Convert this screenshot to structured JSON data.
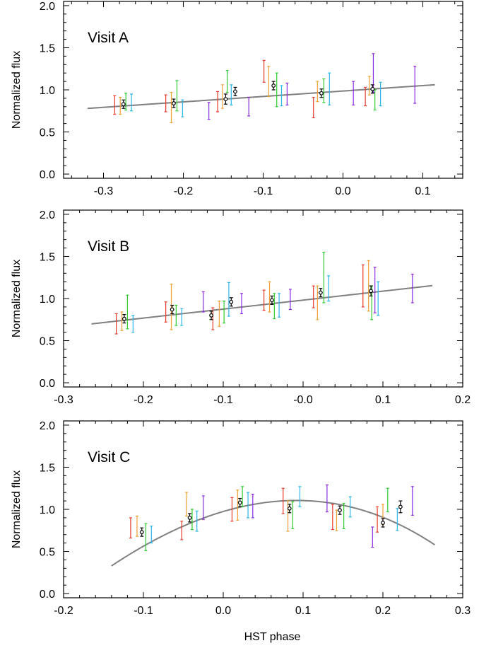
{
  "chart_data": [
    {
      "type": "scatter",
      "panel_label": "Visit A",
      "xlabel": "",
      "ylabel": "Normalized flux",
      "xlim": [
        -0.35,
        0.15
      ],
      "ylim": [
        -0.05,
        2.05
      ],
      "xticks": [
        -0.3,
        -0.2,
        -0.1,
        0.0,
        0.1
      ],
      "xtick_labels": [
        "-0.3",
        "-0.2",
        "-0.1",
        "0.0",
        "0.1"
      ],
      "yticks": [
        0.0,
        0.5,
        1.0,
        1.5,
        2.0
      ],
      "ytick_labels": [
        "0.0",
        "0.5",
        "1.0",
        "1.5",
        "2.0"
      ],
      "model_curve": {
        "color": "#808080",
        "coeffs": [
          0.986,
          0.645,
          0,
          0
        ],
        "x_range": [
          -0.32,
          0.115
        ]
      },
      "binned_points": [
        {
          "x": -0.275,
          "y": 0.83,
          "err": 0.05
        },
        {
          "x": -0.212,
          "y": 0.84,
          "err": 0.05
        },
        {
          "x": -0.147,
          "y": 0.89,
          "err": 0.06
        },
        {
          "x": -0.135,
          "y": 0.98,
          "err": 0.05
        },
        {
          "x": -0.087,
          "y": 1.05,
          "err": 0.05
        },
        {
          "x": -0.027,
          "y": 0.96,
          "err": 0.05
        },
        {
          "x": 0.037,
          "y": 1.01,
          "err": 0.05
        }
      ],
      "channel_points": [
        {
          "x": -0.286,
          "y": 0.82,
          "err": 0.11,
          "color": "#e83a2a"
        },
        {
          "x": -0.279,
          "y": 0.81,
          "err": 0.1,
          "color": "#f0a030"
        },
        {
          "x": -0.272,
          "y": 0.86,
          "err": 0.1,
          "color": "#2ecc2e"
        },
        {
          "x": -0.265,
          "y": 0.85,
          "err": 0.1,
          "color": "#29b5e8"
        },
        {
          "x": -0.222,
          "y": 0.84,
          "err": 0.1,
          "color": "#e83a2a"
        },
        {
          "x": -0.215,
          "y": 0.79,
          "err": 0.18,
          "color": "#f0a030"
        },
        {
          "x": -0.208,
          "y": 0.93,
          "err": 0.18,
          "color": "#2ecc2e"
        },
        {
          "x": -0.201,
          "y": 0.78,
          "err": 0.1,
          "color": "#29b5e8"
        },
        {
          "x": -0.168,
          "y": 0.75,
          "err": 0.1,
          "color": "#8a2be2"
        },
        {
          "x": -0.157,
          "y": 0.86,
          "err": 0.12,
          "color": "#e83a2a"
        },
        {
          "x": -0.151,
          "y": 0.92,
          "err": 0.14,
          "color": "#f0a030"
        },
        {
          "x": -0.145,
          "y": 1.1,
          "err": 0.13,
          "color": "#2ecc2e"
        },
        {
          "x": -0.14,
          "y": 0.94,
          "err": 0.12,
          "color": "#29b5e8"
        },
        {
          "x": -0.118,
          "y": 0.8,
          "err": 0.11,
          "color": "#8a2be2"
        },
        {
          "x": -0.099,
          "y": 1.22,
          "err": 0.13,
          "color": "#e83a2a"
        },
        {
          "x": -0.093,
          "y": 1.1,
          "err": 0.18,
          "color": "#f0a030"
        },
        {
          "x": -0.083,
          "y": 1.0,
          "err": 0.2,
          "color": "#2ecc2e"
        },
        {
          "x": -0.077,
          "y": 0.93,
          "err": 0.12,
          "color": "#29b5e8"
        },
        {
          "x": -0.07,
          "y": 0.95,
          "err": 0.13,
          "color": "#8a2be2"
        },
        {
          "x": -0.037,
          "y": 0.79,
          "err": 0.12,
          "color": "#e83a2a"
        },
        {
          "x": -0.032,
          "y": 0.98,
          "err": 0.12,
          "color": "#f0a030"
        },
        {
          "x": -0.024,
          "y": 0.99,
          "err": 0.14,
          "color": "#2ecc2e"
        },
        {
          "x": -0.017,
          "y": 1.01,
          "err": 0.19,
          "color": "#29b5e8"
        },
        {
          "x": 0.013,
          "y": 0.96,
          "err": 0.14,
          "color": "#8a2be2"
        },
        {
          "x": 0.028,
          "y": 0.92,
          "err": 0.11,
          "color": "#e83a2a"
        },
        {
          "x": 0.033,
          "y": 1.05,
          "err": 0.11,
          "color": "#f0a030"
        },
        {
          "x": 0.04,
          "y": 0.88,
          "err": 0.12,
          "color": "#2ecc2e"
        },
        {
          "x": 0.047,
          "y": 0.95,
          "err": 0.14,
          "color": "#29b5e8"
        },
        {
          "x": 0.038,
          "y": 1.2,
          "err": 0.23,
          "color": "#8a2be2"
        },
        {
          "x": 0.09,
          "y": 1.06,
          "err": 0.22,
          "color": "#8a2be2"
        }
      ]
    },
    {
      "type": "scatter",
      "panel_label": "Visit B",
      "xlabel": "",
      "ylabel": "Normalized flux",
      "xlim": [
        -0.3,
        0.2
      ],
      "ylim": [
        -0.05,
        2.05
      ],
      "xticks": [
        -0.3,
        -0.2,
        -0.1,
        0.0,
        0.1,
        0.2
      ],
      "xtick_labels": [
        "-0.3",
        "-0.2",
        "-0.1",
        "-0.0",
        "0.1",
        "0.2"
      ],
      "yticks": [
        0.0,
        0.5,
        1.0,
        1.5,
        2.0
      ],
      "ytick_labels": [
        "0.0",
        "0.5",
        "1.0",
        "1.5",
        "2.0"
      ],
      "model_curve": {
        "color": "#808080",
        "coeffs": [
          0.981,
          1.065,
          0,
          0
        ],
        "x_range": [
          -0.265,
          0.162
        ]
      },
      "binned_points": [
        {
          "x": -0.224,
          "y": 0.76,
          "err": 0.05
        },
        {
          "x": -0.164,
          "y": 0.87,
          "err": 0.05
        },
        {
          "x": -0.115,
          "y": 0.8,
          "err": 0.05
        },
        {
          "x": -0.09,
          "y": 0.96,
          "err": 0.05
        },
        {
          "x": -0.039,
          "y": 0.98,
          "err": 0.05
        },
        {
          "x": 0.022,
          "y": 1.07,
          "err": 0.05
        },
        {
          "x": 0.085,
          "y": 1.09,
          "err": 0.06
        }
      ],
      "channel_points": [
        {
          "x": -0.234,
          "y": 0.7,
          "err": 0.12,
          "color": "#e83a2a"
        },
        {
          "x": -0.227,
          "y": 0.73,
          "err": 0.11,
          "color": "#f0a030"
        },
        {
          "x": -0.22,
          "y": 0.84,
          "err": 0.2,
          "color": "#2ecc2e"
        },
        {
          "x": -0.213,
          "y": 0.7,
          "err": 0.1,
          "color": "#29b5e8"
        },
        {
          "x": -0.172,
          "y": 0.84,
          "err": 0.12,
          "color": "#e83a2a"
        },
        {
          "x": -0.165,
          "y": 0.9,
          "err": 0.27,
          "color": "#f0a030"
        },
        {
          "x": -0.159,
          "y": 0.8,
          "err": 0.12,
          "color": "#2ecc2e"
        },
        {
          "x": -0.152,
          "y": 0.78,
          "err": 0.1,
          "color": "#29b5e8"
        },
        {
          "x": -0.125,
          "y": 0.96,
          "err": 0.12,
          "color": "#8a2be2"
        },
        {
          "x": -0.113,
          "y": 0.76,
          "err": 0.13,
          "color": "#e83a2a"
        },
        {
          "x": -0.105,
          "y": 0.82,
          "err": 0.15,
          "color": "#f0a030"
        },
        {
          "x": -0.099,
          "y": 0.84,
          "err": 0.13,
          "color": "#2ecc2e"
        },
        {
          "x": -0.093,
          "y": 0.99,
          "err": 0.2,
          "color": "#29b5e8"
        },
        {
          "x": -0.077,
          "y": 0.94,
          "err": 0.12,
          "color": "#8a2be2"
        },
        {
          "x": -0.049,
          "y": 0.98,
          "err": 0.12,
          "color": "#e83a2a"
        },
        {
          "x": -0.042,
          "y": 1.02,
          "err": 0.18,
          "color": "#f0a030"
        },
        {
          "x": -0.036,
          "y": 0.91,
          "err": 0.15,
          "color": "#2ecc2e"
        },
        {
          "x": -0.03,
          "y": 0.92,
          "err": 0.14,
          "color": "#29b5e8"
        },
        {
          "x": -0.016,
          "y": 0.99,
          "err": 0.12,
          "color": "#8a2be2"
        },
        {
          "x": 0.013,
          "y": 1.02,
          "err": 0.13,
          "color": "#e83a2a"
        },
        {
          "x": 0.018,
          "y": 0.95,
          "err": 0.2,
          "color": "#f0a030"
        },
        {
          "x": 0.026,
          "y": 1.25,
          "err": 0.3,
          "color": "#2ecc2e"
        },
        {
          "x": 0.032,
          "y": 1.12,
          "err": 0.15,
          "color": "#29b5e8"
        },
        {
          "x": 0.075,
          "y": 1.15,
          "err": 0.25,
          "color": "#e83a2a"
        },
        {
          "x": 0.082,
          "y": 1.15,
          "err": 0.3,
          "color": "#f0a030"
        },
        {
          "x": 0.086,
          "y": 0.95,
          "err": 0.2,
          "color": "#2ecc2e"
        },
        {
          "x": 0.094,
          "y": 1.0,
          "err": 0.2,
          "color": "#29b5e8"
        },
        {
          "x": 0.09,
          "y": 1.1,
          "err": 0.27,
          "color": "#8a2be2"
        },
        {
          "x": 0.137,
          "y": 1.12,
          "err": 0.17,
          "color": "#8a2be2"
        }
      ]
    },
    {
      "type": "scatter",
      "panel_label": "Visit C",
      "xlabel": "HST phase",
      "ylabel": "Normalized flux",
      "xlim": [
        -0.2,
        0.3
      ],
      "ylim": [
        -0.05,
        2.05
      ],
      "xticks": [
        -0.2,
        -0.1,
        0.0,
        0.1,
        0.2,
        0.3
      ],
      "xtick_labels": [
        "-0.2",
        "-0.1",
        "0.0",
        "0.1",
        "0.2",
        "0.3"
      ],
      "yticks": [
        0.0,
        0.5,
        1.0,
        1.5,
        2.0
      ],
      "ytick_labels": [
        "0.0",
        "0.5",
        "1.0",
        "1.5",
        "2.0"
      ],
      "model_curve": {
        "color": "#808080",
        "coeffs": [
          0.9744,
          2.7855,
          -14.1234,
          -7.6576
        ],
        "x_range": [
          -0.14,
          0.265
        ]
      },
      "binned_points": [
        {
          "x": -0.102,
          "y": 0.73,
          "err": 0.05
        },
        {
          "x": -0.042,
          "y": 0.9,
          "err": 0.05
        },
        {
          "x": 0.021,
          "y": 1.08,
          "err": 0.05
        },
        {
          "x": 0.083,
          "y": 1.01,
          "err": 0.05
        },
        {
          "x": 0.146,
          "y": 0.99,
          "err": 0.05
        },
        {
          "x": 0.2,
          "y": 0.84,
          "err": 0.05
        },
        {
          "x": 0.222,
          "y": 1.03,
          "err": 0.07
        }
      ],
      "channel_points": [
        {
          "x": -0.116,
          "y": 0.78,
          "err": 0.12,
          "color": "#e83a2a"
        },
        {
          "x": -0.108,
          "y": 0.8,
          "err": 0.12,
          "color": "#f0a030"
        },
        {
          "x": -0.097,
          "y": 0.67,
          "err": 0.16,
          "color": "#2ecc2e"
        },
        {
          "x": -0.09,
          "y": 0.7,
          "err": 0.1,
          "color": "#29b5e8"
        },
        {
          "x": -0.052,
          "y": 0.75,
          "err": 0.11,
          "color": "#e83a2a"
        },
        {
          "x": -0.046,
          "y": 1.06,
          "err": 0.14,
          "color": "#f0a030"
        },
        {
          "x": -0.039,
          "y": 0.88,
          "err": 0.12,
          "color": "#2ecc2e"
        },
        {
          "x": -0.033,
          "y": 0.86,
          "err": 0.12,
          "color": "#29b5e8"
        },
        {
          "x": -0.025,
          "y": 1.02,
          "err": 0.14,
          "color": "#8a2be2"
        },
        {
          "x": 0.011,
          "y": 1.0,
          "err": 0.14,
          "color": "#e83a2a"
        },
        {
          "x": 0.018,
          "y": 1.05,
          "err": 0.18,
          "color": "#f0a030"
        },
        {
          "x": 0.024,
          "y": 1.15,
          "err": 0.12,
          "color": "#2ecc2e"
        },
        {
          "x": 0.031,
          "y": 1.05,
          "err": 0.15,
          "color": "#29b5e8"
        },
        {
          "x": 0.037,
          "y": 1.04,
          "err": 0.14,
          "color": "#8a2be2"
        },
        {
          "x": 0.075,
          "y": 1.1,
          "err": 0.15,
          "color": "#e83a2a"
        },
        {
          "x": 0.081,
          "y": 0.92,
          "err": 0.18,
          "color": "#f0a030"
        },
        {
          "x": 0.087,
          "y": 0.93,
          "err": 0.16,
          "color": "#2ecc2e"
        },
        {
          "x": 0.096,
          "y": 1.15,
          "err": 0.12,
          "color": "#29b5e8"
        },
        {
          "x": 0.13,
          "y": 1.13,
          "err": 0.16,
          "color": "#8a2be2"
        },
        {
          "x": 0.137,
          "y": 0.91,
          "err": 0.15,
          "color": "#e83a2a"
        },
        {
          "x": 0.142,
          "y": 0.87,
          "err": 0.12,
          "color": "#f0a030"
        },
        {
          "x": 0.151,
          "y": 0.92,
          "err": 0.15,
          "color": "#2ecc2e"
        },
        {
          "x": 0.159,
          "y": 1.03,
          "err": 0.12,
          "color": "#29b5e8"
        },
        {
          "x": 0.187,
          "y": 0.67,
          "err": 0.12,
          "color": "#8a2be2"
        },
        {
          "x": 0.193,
          "y": 0.88,
          "err": 0.15,
          "color": "#e83a2a"
        },
        {
          "x": 0.2,
          "y": 0.94,
          "err": 0.12,
          "color": "#f0a030"
        },
        {
          "x": 0.206,
          "y": 1.11,
          "err": 0.14,
          "color": "#2ecc2e"
        },
        {
          "x": 0.218,
          "y": 0.88,
          "err": 0.13,
          "color": "#29b5e8"
        },
        {
          "x": 0.237,
          "y": 1.1,
          "err": 0.17,
          "color": "#8a2be2"
        }
      ]
    }
  ]
}
